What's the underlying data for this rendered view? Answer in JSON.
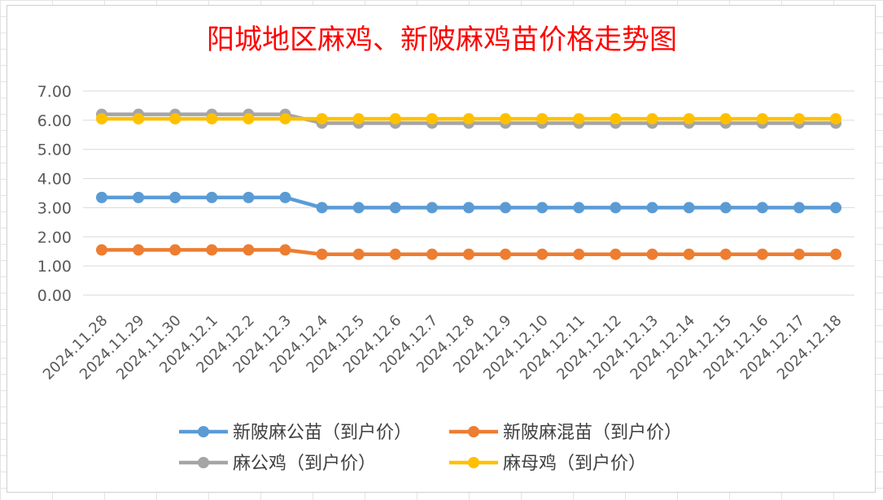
{
  "chart_data": {
    "type": "line",
    "title": "阳城地区麻鸡、新陂麻鸡苗价格走势图",
    "xlabel": "",
    "ylabel": "",
    "categories": [
      "2024.11.28",
      "2024.11.29",
      "2024.11.30",
      "2024.12.1",
      "2024.12.2",
      "2024.12.3",
      "2024.12.4",
      "2024.12.5",
      "2024.12.6",
      "2024.12.7",
      "2024.12.8",
      "2024.12.9",
      "2024.12.10",
      "2024.12.11",
      "2024.12.12",
      "2024.12.13",
      "2024.12.14",
      "2024.12.15",
      "2024.12.16",
      "2024.12.17",
      "2024.12.18"
    ],
    "yticks": [
      "0.00",
      "1.00",
      "2.00",
      "3.00",
      "4.00",
      "5.00",
      "6.00",
      "7.00"
    ],
    "ylim": [
      0,
      7
    ],
    "grid": true,
    "legend_position": "bottom",
    "series": [
      {
        "name": "新陂麻公苗（到户价）",
        "color": "#5b9bd5",
        "values": [
          3.35,
          3.35,
          3.35,
          3.35,
          3.35,
          3.35,
          3.0,
          3.0,
          3.0,
          3.0,
          3.0,
          3.0,
          3.0,
          3.0,
          3.0,
          3.0,
          3.0,
          3.0,
          3.0,
          3.0,
          3.0
        ]
      },
      {
        "name": "新陂麻混苗（到户价）",
        "color": "#ed7d31",
        "values": [
          1.55,
          1.55,
          1.55,
          1.55,
          1.55,
          1.55,
          1.4,
          1.4,
          1.4,
          1.4,
          1.4,
          1.4,
          1.4,
          1.4,
          1.4,
          1.4,
          1.4,
          1.4,
          1.4,
          1.4,
          1.4
        ]
      },
      {
        "name": "麻公鸡（到户价）",
        "color": "#a5a5a5",
        "values": [
          6.2,
          6.2,
          6.2,
          6.2,
          6.2,
          6.2,
          5.9,
          5.9,
          5.9,
          5.9,
          5.9,
          5.9,
          5.9,
          5.9,
          5.9,
          5.9,
          5.9,
          5.9,
          5.9,
          5.9,
          5.9
        ]
      },
      {
        "name": "麻母鸡（到户价）",
        "color": "#ffc000",
        "values": [
          6.05,
          6.05,
          6.05,
          6.05,
          6.05,
          6.05,
          6.05,
          6.05,
          6.05,
          6.05,
          6.05,
          6.05,
          6.05,
          6.05,
          6.05,
          6.05,
          6.05,
          6.05,
          6.05,
          6.05,
          6.05
        ]
      }
    ]
  }
}
